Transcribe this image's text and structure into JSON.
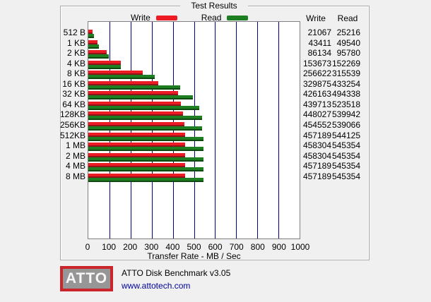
{
  "window": {
    "background": "#f0f0f0"
  },
  "group_box": {
    "title": "Test Results"
  },
  "legend": {
    "write_label": "Write",
    "read_label": "Read",
    "write_color": "#ed1c24",
    "read_color": "#1e7e22"
  },
  "columns": {
    "write_header": "Write",
    "read_header": "Read"
  },
  "chart_data": {
    "type": "bar",
    "orientation": "horizontal",
    "title": "Test Results",
    "categories": [
      "512 B",
      "1 KB",
      "2 KB",
      "4 KB",
      "8 KB",
      "16 KB",
      "32 KB",
      "64 KB",
      "128KB",
      "256KB",
      "512KB",
      "1 MB",
      "2 MB",
      "4 MB",
      "8 MB"
    ],
    "series": [
      {
        "name": "Write",
        "color": "#ed1c24",
        "edge_color": "#8e1418",
        "values": [
          21067,
          43411,
          86134,
          153673,
          256622,
          329875,
          426163,
          439713,
          448027,
          454552,
          457189,
          458304,
          458304,
          457189,
          457189
        ]
      },
      {
        "name": "Read",
        "color": "#1e7e22",
        "edge_color": "#0e4a10",
        "values": [
          25216,
          49540,
          95780,
          152269,
          315539,
          433254,
          494338,
          523518,
          539942,
          539066,
          544125,
          545354,
          545354,
          545354,
          545354
        ]
      }
    ],
    "values_unit": "KB/Sec",
    "axis_unit_divisor": 1000,
    "xlabel": "Transfer Rate - MB / Sec",
    "x_ticks": [
      0,
      100,
      200,
      300,
      400,
      500,
      600,
      700,
      800,
      900,
      1000
    ],
    "xlim": [
      0,
      1000
    ],
    "gridline_color": "#00008b",
    "legend_position": "top"
  },
  "footer": {
    "logo_text": "ATTO",
    "app_title": "ATTO Disk Benchmark v3.05",
    "url": "www.attotech.com"
  }
}
